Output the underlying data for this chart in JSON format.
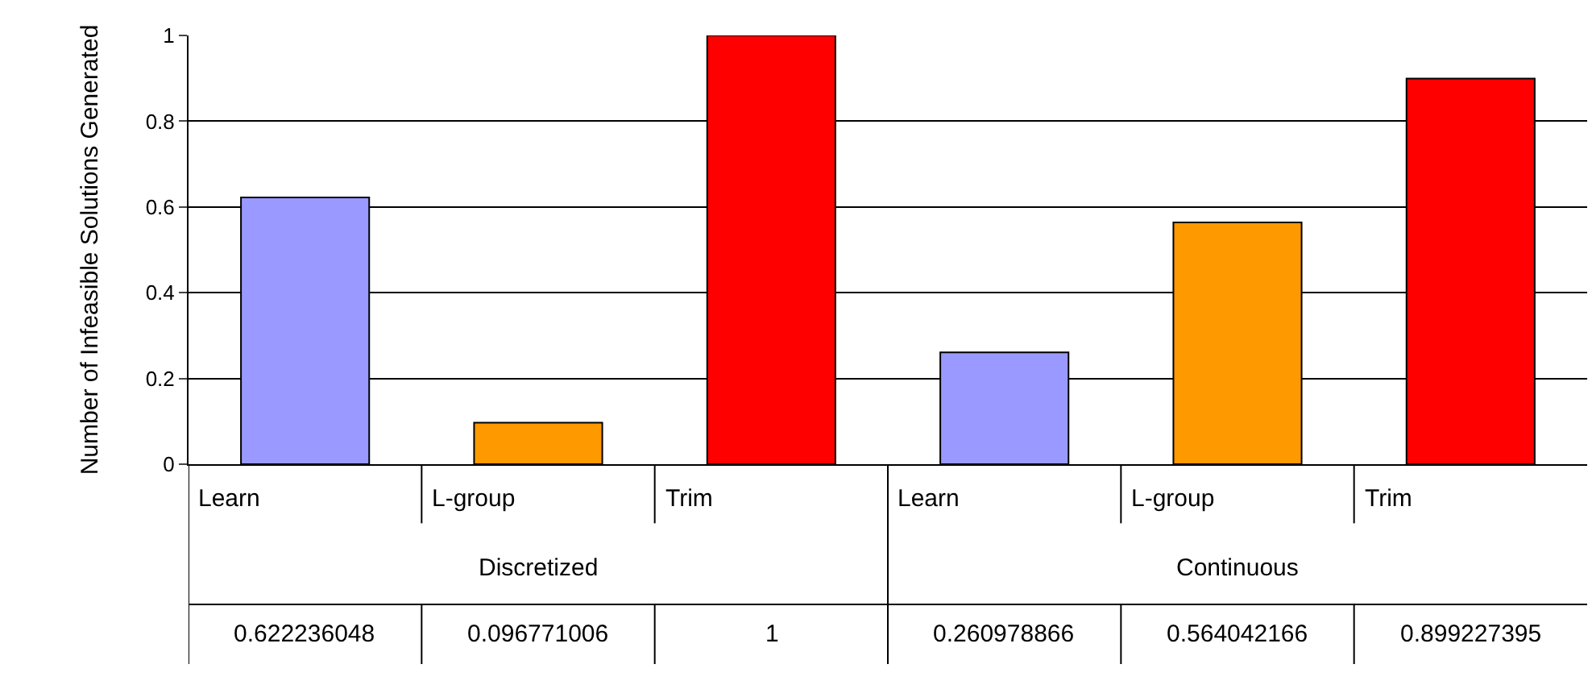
{
  "chart_data": {
    "type": "bar",
    "ylabel": "Number of Infeasible Solutions Generated",
    "categories": [
      "Learn",
      "L-group",
      "Trim",
      "Learn",
      "L-group",
      "Trim"
    ],
    "values": [
      0.622236048,
      0.096771006,
      1,
      0.260978866,
      0.564042166,
      0.899227395
    ],
    "colors": [
      "#9999ff",
      "#ff9900",
      "#ff0000",
      "#9999ff",
      "#ff9900",
      "#ff0000"
    ],
    "annotations": [
      "Discretized",
      "Continuous"
    ],
    "ylim": [
      0,
      1
    ],
    "yticks": [
      0,
      0.2,
      0.4,
      0.6,
      0.8,
      1
    ],
    "grid": "y",
    "data_labels": true
  }
}
